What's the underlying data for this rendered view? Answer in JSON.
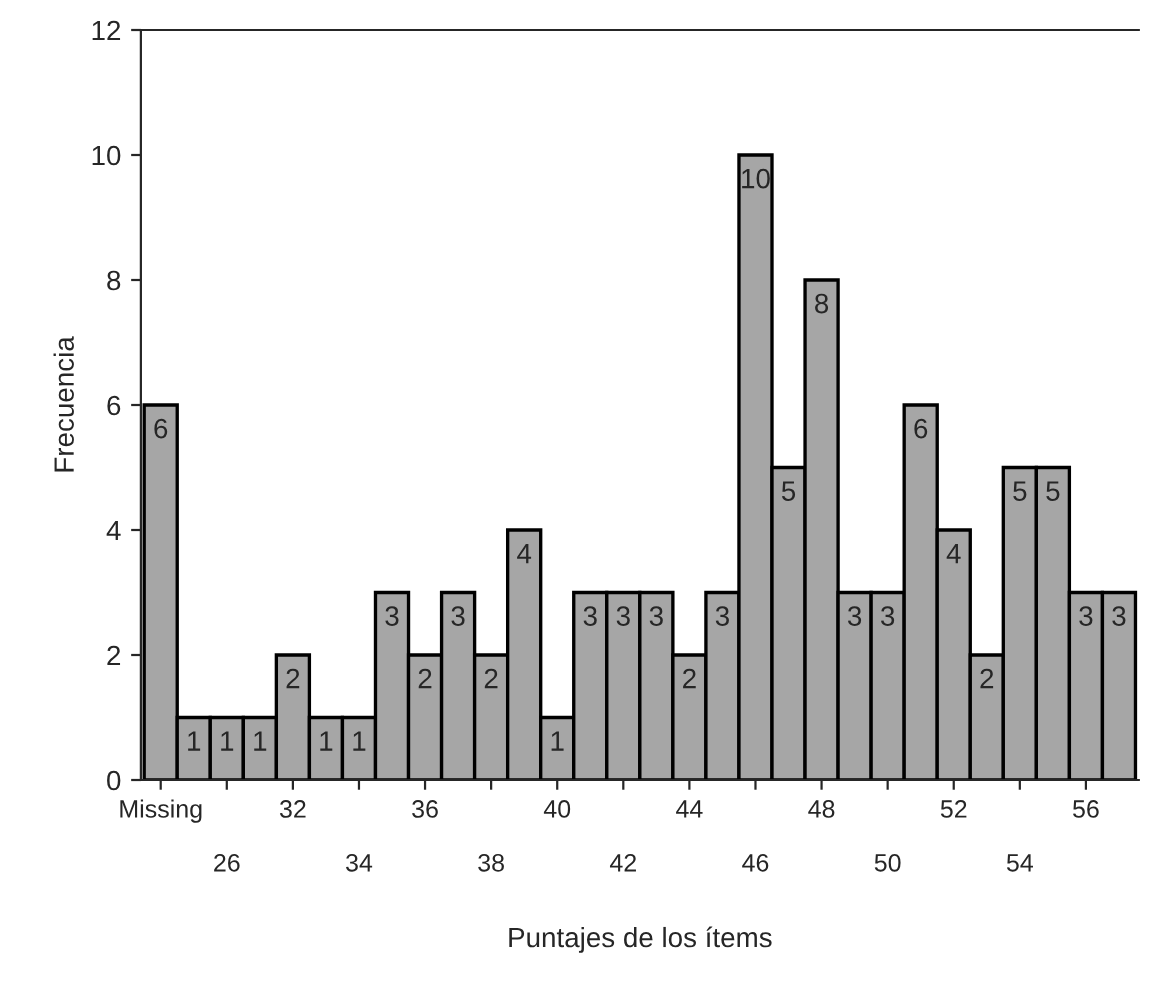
{
  "chart_data": {
    "type": "bar",
    "xlabel": "Puntajes de los ítems",
    "ylabel": "Frecuencia",
    "categories": [
      "Missing",
      null,
      "26",
      null,
      "32",
      null,
      "34",
      null,
      "36",
      null,
      "38",
      null,
      "40",
      null,
      "42",
      null,
      "44",
      null,
      "46",
      null,
      "48",
      null,
      "50",
      null,
      "52",
      null,
      "54",
      null,
      "56",
      null
    ],
    "values": [
      6,
      1,
      1,
      1,
      2,
      1,
      1,
      3,
      2,
      3,
      2,
      4,
      1,
      3,
      3,
      3,
      2,
      3,
      10,
      5,
      8,
      3,
      3,
      6,
      4,
      2,
      5,
      5,
      3,
      3
    ],
    "color": "#a6a6a6",
    "ylim": [
      0,
      12
    ],
    "yticks": [
      0,
      2,
      4,
      6,
      8,
      10,
      12
    ],
    "data_labels": true,
    "grid": false,
    "legend": false
  }
}
